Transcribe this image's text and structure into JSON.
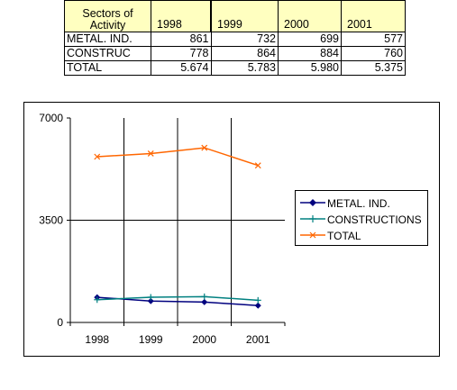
{
  "table": {
    "header": {
      "sector_label_line1": "Sectors of",
      "sector_label_line2": "Activity",
      "years": [
        "1998",
        "1999",
        "2000",
        "2001"
      ]
    },
    "rows": [
      {
        "label": "METAL. IND.",
        "values": [
          "861",
          "732",
          "699",
          "577"
        ]
      },
      {
        "label": "CONSTRUC",
        "values": [
          "778",
          "864",
          "884",
          "760"
        ]
      },
      {
        "label": "TOTAL",
        "values": [
          "5.674",
          "5.783",
          "5.980",
          "5.375"
        ]
      }
    ]
  },
  "chart_data": {
    "type": "line",
    "categories": [
      "1998",
      "1999",
      "2000",
      "2001"
    ],
    "ylim": [
      0,
      7000
    ],
    "yticks": [
      "0",
      "3500",
      "7000"
    ],
    "grid": true,
    "legend_position": "right",
    "series": [
      {
        "name": "METAL. IND.",
        "values": [
          861,
          732,
          699,
          577
        ],
        "color": "#00007f",
        "marker": "diamond"
      },
      {
        "name": "CONSTRUCTIONS",
        "values": [
          778,
          864,
          884,
          760
        ],
        "color": "#008080",
        "marker": "plus"
      },
      {
        "name": "TOTAL",
        "values": [
          5674,
          5783,
          5980,
          5375
        ],
        "color": "#ff6600",
        "marker": "x"
      }
    ],
    "title": "",
    "xlabel": "",
    "ylabel": ""
  }
}
